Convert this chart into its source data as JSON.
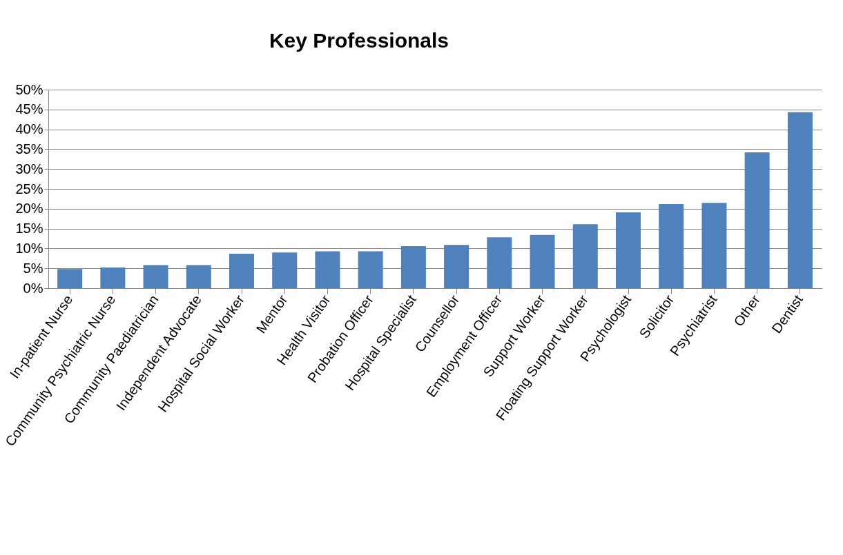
{
  "chart_data": {
    "type": "bar",
    "title": "Key Professionals",
    "categories": [
      "In-patient Nurse",
      "Community Psychiatric Nurse",
      "Community Paediatrician",
      "Independent Advocate",
      "Hospital Social Worker",
      "Mentor",
      "Health Visitor",
      "Probation Officer",
      "Hospital Specialist",
      "Counsellor",
      "Employment Officer",
      "Support Worker",
      "Floating Support Worker",
      "Psychologist",
      "Solicitor",
      "Psychiatrist",
      "Other",
      "Dentist"
    ],
    "values": [
      4.8,
      5.2,
      5.8,
      5.8,
      8.7,
      9.0,
      9.3,
      9.3,
      10.6,
      10.9,
      12.8,
      13.4,
      16.1,
      19.1,
      21.2,
      21.5,
      34.2,
      44.3
    ],
    "color": "#4f81bd",
    "ylim": [
      0,
      50
    ],
    "yticks": [
      {
        "value": 0,
        "label": "0%"
      },
      {
        "value": 5,
        "label": "5%"
      },
      {
        "value": 10,
        "label": "10%"
      },
      {
        "value": 15,
        "label": "15%"
      },
      {
        "value": 20,
        "label": "20%"
      },
      {
        "value": 25,
        "label": "25%"
      },
      {
        "value": 30,
        "label": "30%"
      },
      {
        "value": 35,
        "label": "35%"
      },
      {
        "value": 40,
        "label": "40%"
      },
      {
        "value": 45,
        "label": "45%"
      },
      {
        "value": 50,
        "label": "50%"
      }
    ],
    "grid": "y"
  }
}
